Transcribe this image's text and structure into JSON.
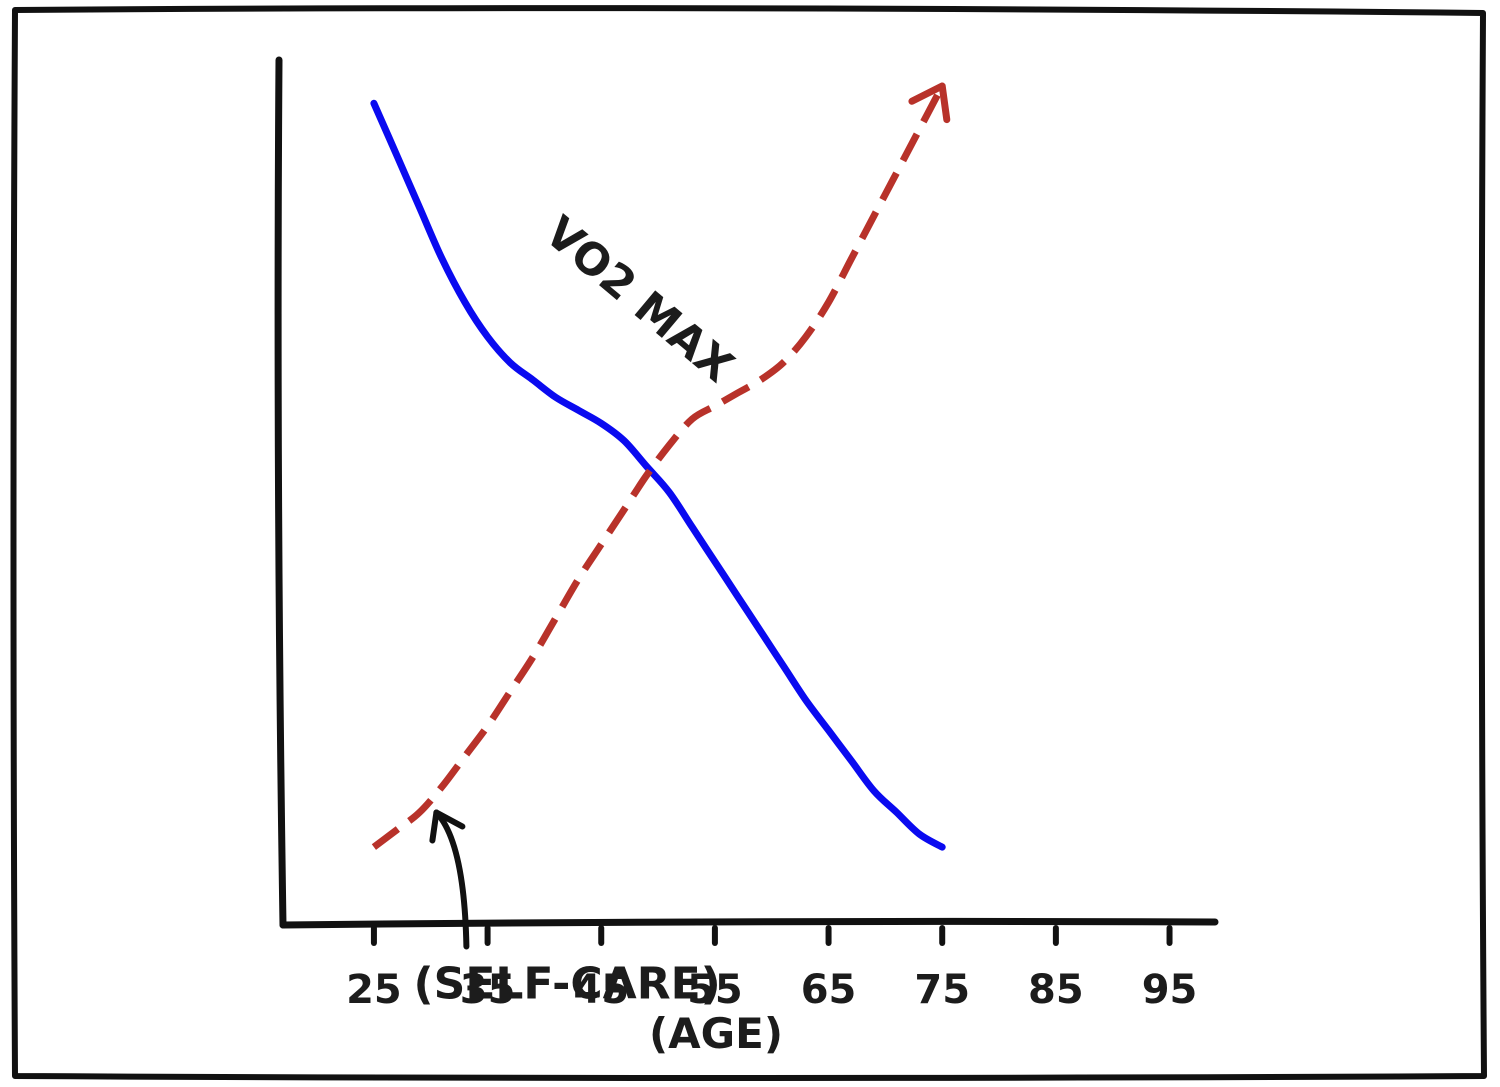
{
  "chart_data": {
    "type": "line",
    "title": "",
    "xlabel": "(AGE)",
    "ylabel": "",
    "x_ticks": [
      25,
      35,
      45,
      55,
      65,
      75,
      85,
      95
    ],
    "xlim": [
      17,
      99
    ],
    "ylim": [
      0,
      100
    ],
    "grid": false,
    "legend": "none",
    "series": [
      {
        "name": "VO2 MAX",
        "color": "#0a0af0",
        "style": "solid",
        "x": [
          25,
          27,
          29,
          31,
          33,
          35,
          37,
          39,
          41,
          43,
          45,
          47,
          49,
          51,
          53,
          55,
          57,
          59,
          61,
          63,
          65,
          67,
          69,
          71,
          73,
          75
        ],
        "y": [
          95,
          89,
          83,
          77,
          72,
          68,
          65,
          63,
          61,
          59.5,
          58,
          56,
          53,
          50,
          46,
          42,
          38,
          34,
          30,
          26,
          22.5,
          19,
          15.5,
          13,
          10.5,
          9
        ]
      },
      {
        "name": "(SELF-CARE)",
        "color": "#b8322a",
        "style": "dashed",
        "arrow_end": true,
        "x": [
          25,
          27,
          29,
          31,
          33,
          35,
          37,
          39,
          41,
          43,
          45,
          47,
          49,
          51,
          53,
          55,
          57,
          59,
          61,
          63,
          65,
          67,
          69,
          71,
          73,
          75
        ],
        "y": [
          9,
          11,
          13,
          16,
          19.5,
          23,
          27,
          31,
          35.5,
          40,
          44,
          48,
          52,
          55.5,
          58.5,
          60,
          61.5,
          63,
          65,
          68,
          72,
          77,
          82,
          87,
          92,
          97
        ]
      }
    ],
    "annotations": [
      {
        "text": "VO2 MAX",
        "x": 47.5,
        "y": 71,
        "rotate": 40,
        "target_series": "VO2 MAX"
      },
      {
        "text": "(SELF-CARE)",
        "x": 42,
        "y": -8.5,
        "arrow_to": {
          "x": 30.5,
          "y": 13
        }
      }
    ]
  }
}
